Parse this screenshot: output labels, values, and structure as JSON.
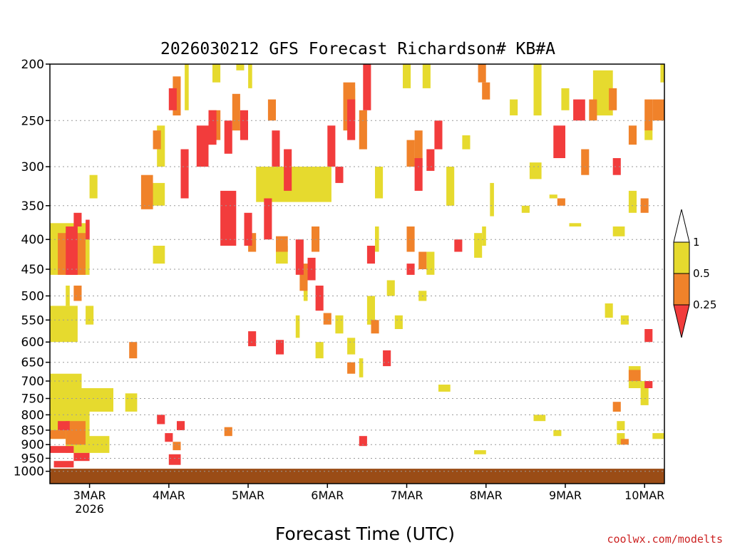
{
  "title": "2026030212 GFS Forecast Richardson# KB#A",
  "xlabel": "Forecast Time (UTC)",
  "credit": "coolwx.com/modelts",
  "colors": {
    "yellow": "#e6da2e",
    "orange": "#f0822a",
    "red": "#f23c3c",
    "ground": "#9a4c16",
    "grid": "#9a9a9a",
    "frame": "#000000"
  },
  "chart_data": {
    "type": "heatmap",
    "title": "2026030212 GFS Forecast Richardson# KB#A",
    "xlabel": "Forecast Time (UTC)",
    "ylabel": "",
    "y_scale": "log",
    "y_reversed": true,
    "ylim": [
      200,
      1050
    ],
    "xlim": [
      0,
      7.75
    ],
    "x_note": "days after 2026-03-02 12 UTC",
    "x_ticks": [
      {
        "x": 0.5,
        "label": "3MAR",
        "sub": "2026"
      },
      {
        "x": 1.5,
        "label": "4MAR"
      },
      {
        "x": 2.5,
        "label": "5MAR"
      },
      {
        "x": 3.5,
        "label": "6MAR"
      },
      {
        "x": 4.5,
        "label": "7MAR"
      },
      {
        "x": 5.5,
        "label": "8MAR"
      },
      {
        "x": 6.5,
        "label": "9MAR"
      },
      {
        "x": 7.5,
        "label": "10MAR"
      }
    ],
    "y_ticks": [
      200,
      250,
      300,
      350,
      400,
      450,
      500,
      550,
      600,
      650,
      700,
      750,
      800,
      850,
      900,
      950,
      1000
    ],
    "grid": true,
    "legend": {
      "placement": "right",
      "labels": [
        "1",
        "0.5",
        "0.25"
      ],
      "classes": [
        {
          "range": "0.5-1",
          "color": "#e6da2e"
        },
        {
          "range": "0.25-0.5",
          "color": "#f0822a"
        },
        {
          "range": "<0.25",
          "color": "#f23c3c"
        }
      ]
    },
    "series": [
      {
        "cls": "Y",
        "patches": [
          [
            0.0,
            0.5,
            375,
            460
          ],
          [
            0.0,
            0.35,
            520,
            600
          ],
          [
            0.0,
            0.4,
            680,
            760
          ],
          [
            0.0,
            0.8,
            720,
            790
          ],
          [
            0.0,
            0.5,
            790,
            880
          ],
          [
            0.2,
            0.75,
            870,
            930
          ],
          [
            0.4,
            0.75,
            720,
            790
          ],
          [
            0.95,
            1.1,
            735,
            790
          ],
          [
            0.45,
            0.55,
            520,
            560
          ],
          [
            0.5,
            0.6,
            310,
            340
          ],
          [
            0.2,
            0.25,
            480,
            520
          ],
          [
            1.25,
            1.45,
            320,
            350
          ],
          [
            1.35,
            1.45,
            255,
            300
          ],
          [
            1.3,
            1.45,
            410,
            440
          ],
          [
            1.7,
            1.75,
            200,
            240
          ],
          [
            2.05,
            2.15,
            200,
            215
          ],
          [
            2.35,
            2.45,
            200,
            205
          ],
          [
            2.5,
            2.55,
            200,
            220
          ],
          [
            2.6,
            3.55,
            300,
            345
          ],
          [
            2.85,
            3.0,
            410,
            440
          ],
          [
            3.1,
            3.15,
            540,
            590
          ],
          [
            3.2,
            3.25,
            460,
            510
          ],
          [
            3.35,
            3.45,
            600,
            640
          ],
          [
            3.6,
            3.7,
            540,
            580
          ],
          [
            3.75,
            3.85,
            590,
            630
          ],
          [
            3.8,
            3.85,
            220,
            250
          ],
          [
            3.9,
            3.95,
            640,
            690
          ],
          [
            4.0,
            4.1,
            500,
            560
          ],
          [
            4.1,
            4.15,
            380,
            420
          ],
          [
            4.1,
            4.2,
            300,
            340
          ],
          [
            4.25,
            4.35,
            470,
            500
          ],
          [
            4.35,
            4.45,
            540,
            570
          ],
          [
            4.45,
            4.55,
            200,
            220
          ],
          [
            4.65,
            4.75,
            490,
            510
          ],
          [
            4.7,
            4.8,
            200,
            220
          ],
          [
            4.75,
            4.85,
            420,
            460
          ],
          [
            5.0,
            5.1,
            300,
            350
          ],
          [
            5.2,
            5.3,
            265,
            280
          ],
          [
            5.35,
            5.45,
            390,
            430
          ],
          [
            5.45,
            5.5,
            380,
            410
          ],
          [
            5.55,
            5.6,
            320,
            365
          ],
          [
            5.8,
            5.9,
            230,
            245
          ],
          [
            5.95,
            6.05,
            350,
            360
          ],
          [
            6.05,
            6.2,
            295,
            315
          ],
          [
            6.1,
            6.2,
            200,
            245
          ],
          [
            6.3,
            6.4,
            335,
            340
          ],
          [
            6.45,
            6.55,
            220,
            240
          ],
          [
            6.55,
            6.7,
            375,
            380
          ],
          [
            6.85,
            7.1,
            205,
            245
          ],
          [
            7.1,
            7.25,
            380,
            395
          ],
          [
            7.3,
            7.4,
            330,
            360
          ],
          [
            7.5,
            7.6,
            250,
            270
          ],
          [
            7.7,
            7.75,
            200,
            215
          ],
          [
            7.0,
            7.1,
            515,
            545
          ],
          [
            7.15,
            7.25,
            820,
            850
          ],
          [
            7.2,
            7.3,
            540,
            560
          ],
          [
            7.3,
            7.45,
            660,
            720
          ],
          [
            7.45,
            7.55,
            700,
            770
          ],
          [
            7.6,
            7.75,
            860,
            880
          ],
          [
            4.9,
            5.05,
            710,
            730
          ],
          [
            5.35,
            5.5,
            920,
            935
          ],
          [
            6.1,
            6.25,
            800,
            820
          ],
          [
            6.35,
            6.45,
            850,
            870
          ],
          [
            7.15,
            7.25,
            860,
            900
          ]
        ]
      },
      {
        "cls": "O",
        "patches": [
          [
            0.1,
            0.45,
            390,
            460
          ],
          [
            0.2,
            0.45,
            820,
            900
          ],
          [
            0.0,
            0.2,
            850,
            880
          ],
          [
            0.3,
            0.4,
            480,
            510
          ],
          [
            1.15,
            1.3,
            310,
            355
          ],
          [
            1.3,
            1.4,
            260,
            280
          ],
          [
            1.55,
            1.65,
            210,
            245
          ],
          [
            2.0,
            2.15,
            240,
            270
          ],
          [
            2.3,
            2.4,
            225,
            260
          ],
          [
            2.5,
            2.6,
            390,
            420
          ],
          [
            2.75,
            2.85,
            230,
            250
          ],
          [
            2.85,
            3.0,
            395,
            420
          ],
          [
            3.15,
            3.25,
            440,
            490
          ],
          [
            3.3,
            3.4,
            380,
            420
          ],
          [
            3.45,
            3.55,
            535,
            560
          ],
          [
            3.7,
            3.85,
            215,
            260
          ],
          [
            3.9,
            4.0,
            240,
            280
          ],
          [
            4.05,
            4.15,
            550,
            580
          ],
          [
            4.5,
            4.6,
            270,
            300
          ],
          [
            4.6,
            4.7,
            260,
            300
          ],
          [
            4.5,
            4.6,
            380,
            420
          ],
          [
            4.65,
            4.75,
            420,
            450
          ],
          [
            5.4,
            5.5,
            200,
            215
          ],
          [
            5.45,
            5.55,
            215,
            230
          ],
          [
            6.7,
            6.8,
            280,
            310
          ],
          [
            6.4,
            6.5,
            340,
            350
          ],
          [
            7.05,
            7.15,
            220,
            240
          ],
          [
            7.3,
            7.4,
            255,
            275
          ],
          [
            7.45,
            7.55,
            340,
            360
          ],
          [
            7.5,
            7.6,
            230,
            260
          ],
          [
            7.6,
            7.75,
            230,
            250
          ],
          [
            7.3,
            7.45,
            670,
            700
          ],
          [
            7.2,
            7.3,
            880,
            900
          ],
          [
            7.1,
            7.2,
            760,
            790
          ],
          [
            6.8,
            6.9,
            230,
            250
          ],
          [
            1.0,
            1.1,
            600,
            640
          ],
          [
            2.2,
            2.3,
            840,
            870
          ],
          [
            1.55,
            1.65,
            890,
            920
          ],
          [
            3.75,
            3.85,
            650,
            680
          ]
        ]
      },
      {
        "cls": "R",
        "patches": [
          [
            0.2,
            0.35,
            380,
            460
          ],
          [
            0.3,
            0.4,
            360,
            380
          ],
          [
            0.45,
            0.5,
            370,
            400
          ],
          [
            0.1,
            0.25,
            820,
            850
          ],
          [
            0.0,
            0.3,
            905,
            930
          ],
          [
            0.3,
            0.5,
            930,
            960
          ],
          [
            0.05,
            0.3,
            960,
            985
          ],
          [
            1.5,
            1.6,
            220,
            240
          ],
          [
            1.65,
            1.75,
            280,
            340
          ],
          [
            1.85,
            2.0,
            255,
            300
          ],
          [
            2.0,
            2.1,
            240,
            275
          ],
          [
            2.15,
            2.35,
            330,
            410
          ],
          [
            2.2,
            2.3,
            250,
            285
          ],
          [
            2.4,
            2.5,
            240,
            270
          ],
          [
            2.45,
            2.55,
            360,
            410
          ],
          [
            2.7,
            2.8,
            340,
            400
          ],
          [
            2.8,
            2.9,
            260,
            300
          ],
          [
            2.95,
            3.05,
            280,
            330
          ],
          [
            3.1,
            3.2,
            400,
            460
          ],
          [
            3.25,
            3.35,
            430,
            470
          ],
          [
            3.35,
            3.45,
            480,
            530
          ],
          [
            3.5,
            3.6,
            255,
            300
          ],
          [
            3.6,
            3.7,
            300,
            320
          ],
          [
            3.75,
            3.85,
            230,
            270
          ],
          [
            3.95,
            4.05,
            200,
            240
          ],
          [
            4.0,
            4.1,
            410,
            440
          ],
          [
            4.2,
            4.3,
            620,
            660
          ],
          [
            4.5,
            4.6,
            440,
            460
          ],
          [
            4.6,
            4.7,
            290,
            330
          ],
          [
            4.75,
            4.85,
            280,
            305
          ],
          [
            4.85,
            4.95,
            250,
            280
          ],
          [
            5.1,
            5.2,
            400,
            420
          ],
          [
            6.35,
            6.5,
            255,
            290
          ],
          [
            6.6,
            6.75,
            230,
            250
          ],
          [
            7.1,
            7.2,
            290,
            310
          ],
          [
            7.5,
            7.6,
            570,
            600
          ],
          [
            7.5,
            7.6,
            700,
            720
          ],
          [
            2.5,
            2.6,
            575,
            610
          ],
          [
            2.85,
            2.95,
            595,
            630
          ],
          [
            1.35,
            1.45,
            800,
            830
          ],
          [
            1.45,
            1.55,
            860,
            890
          ],
          [
            1.6,
            1.7,
            820,
            850
          ],
          [
            1.5,
            1.65,
            935,
            975
          ],
          [
            3.9,
            4.0,
            870,
            905
          ]
        ]
      }
    ],
    "surface_band": {
      "from_pressure": 990,
      "to_pressure": 1050,
      "color_key": "ground"
    }
  }
}
